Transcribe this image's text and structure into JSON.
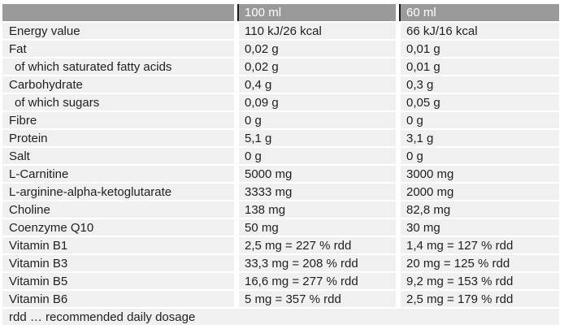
{
  "table": {
    "header": {
      "label_col": "",
      "col_100ml": "100 ml",
      "col_60ml": "60 ml"
    },
    "rows": [
      {
        "label": "Energy value",
        "per100": "110 kJ/26 kcal",
        "per60": "66 kJ/16 kcal"
      },
      {
        "label": "Fat",
        "per100": "0,02 g",
        "per60": "0,01 g"
      },
      {
        "label": "of which saturated fatty acids",
        "per100": "0,02 g",
        "per60": "0,01 g"
      },
      {
        "label": "Carbohydrate",
        "per100": "0,4 g",
        "per60": "0,3 g"
      },
      {
        "label": "of which sugars",
        "per100": "0,09 g",
        "per60": "0,05 g"
      },
      {
        "label": "Fibre",
        "per100": "0 g",
        "per60": "0 g"
      },
      {
        "label": "Protein",
        "per100": "5,1 g",
        "per60": "3,1 g"
      },
      {
        "label": "Salt",
        "per100": "0 g",
        "per60": "0 g"
      },
      {
        "label": "L-Carnitine",
        "per100": "5000 mg",
        "per60": "3000 mg"
      },
      {
        "label": "L-arginine-alpha-ketoglutarate",
        "per100": "3333 mg",
        "per60": "2000 mg"
      },
      {
        "label": "Choline",
        "per100": "138 mg",
        "per60": "82,8 mg"
      },
      {
        "label": "Coenzyme Q10",
        "per100": "50 mg",
        "per60": "30 mg"
      },
      {
        "label": "Vitamin B1",
        "per100": "2,5 mg = 227 % rdd",
        "per60": "1,4 mg = 127 % rdd"
      },
      {
        "label": "Vitamin B3",
        "per100": "33,3 mg = 208 % rdd",
        "per60": "20 mg = 125 % rdd"
      },
      {
        "label": "Vitamin B5",
        "per100": "16,6 mg = 277 % rdd",
        "per60": "9,2 mg = 153 % rdd"
      },
      {
        "label": "Vitamin B6",
        "per100": "5 mg = 357 % rdd",
        "per60": "2,5 mg = 179 % rdd"
      }
    ],
    "footnote": "rdd … recommended daily dosage"
  },
  "colors": {
    "header_bg": "#9a9a9a",
    "header_text": "#ffffff",
    "row_bg": "#f0f0f0",
    "text": "#1f1f1f",
    "header_divider": "#1a1a1a",
    "page_bg": "#ffffff"
  }
}
